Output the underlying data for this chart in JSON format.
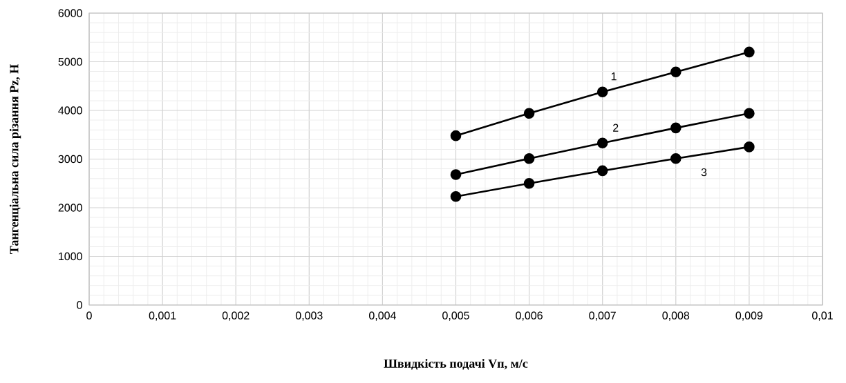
{
  "chart_data": {
    "type": "line",
    "xlabel": "Швидкість подачі Vп, м/с",
    "ylabel": "Тангенціальна сила  різання Pz, Н",
    "x": [
      0.005,
      0.006,
      0.007,
      0.008,
      0.009
    ],
    "series": [
      {
        "name": "1",
        "color": "#000000",
        "values": [
          3480,
          3940,
          4380,
          4790,
          5200
        ]
      },
      {
        "name": "2",
        "color": "#000000",
        "values": [
          2680,
          3010,
          3330,
          3640,
          3940
        ]
      },
      {
        "name": "3",
        "color": "#000000",
        "values": [
          2230,
          2500,
          2760,
          3010,
          3250
        ]
      }
    ],
    "xlim": [
      0,
      0.01
    ],
    "ylim": [
      0,
      6000
    ],
    "xticks": [
      0,
      {
        "value": 0.001,
        "label": "0,001"
      },
      {
        "value": 0.002,
        "label": "0,002"
      },
      {
        "value": 0.003,
        "label": "0,003"
      },
      {
        "value": 0.004,
        "label": "0,004"
      },
      {
        "value": 0.005,
        "label": "0,005"
      },
      {
        "value": 0.006,
        "label": "0,006"
      },
      {
        "value": 0.007,
        "label": "0,007"
      },
      {
        "value": 0.008,
        "label": "0,008"
      },
      {
        "value": 0.009,
        "label": "0,009"
      },
      {
        "value": 0.01,
        "label": "0,01"
      }
    ],
    "yticks": [
      0,
      1000,
      2000,
      3000,
      4000,
      5000,
      6000
    ],
    "grid": true,
    "marker": "circle",
    "line_style": "solid"
  }
}
